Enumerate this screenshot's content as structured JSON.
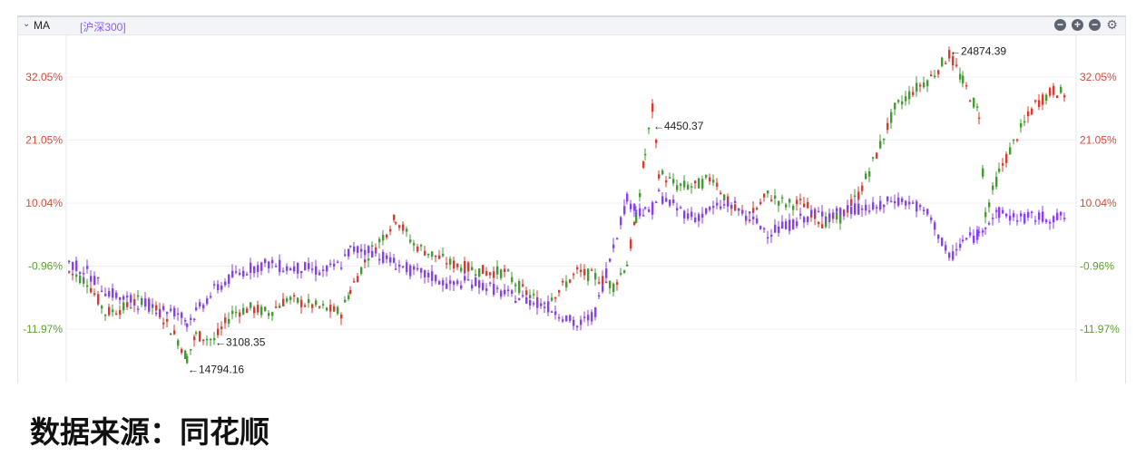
{
  "header": {
    "indicator": "MA",
    "index_label": "[沪深300]",
    "icons": [
      "collapse-circle-icon",
      "zoom-in-icon",
      "zoom-out-icon",
      "gear-icon"
    ]
  },
  "caption": "数据来源：同花顺",
  "chart_data": {
    "type": "candlestick-comparison",
    "ylim": [
      -19,
      38
    ],
    "y_ticks": [
      "32.05%",
      "21.05%",
      "10.04%",
      "-0.96%",
      "-11.97%"
    ],
    "y_tick_values": [
      32.05,
      21.05,
      10.04,
      -0.96,
      -11.97
    ],
    "grid": true,
    "colors": {
      "up": "#e0392b",
      "down": "#3f9e2c",
      "index": "#8a3cff",
      "tick_positive": "#d9473a",
      "tick_negative": "#5aa02c"
    },
    "series": [
      {
        "role": "main",
        "values_pct": [
          -2,
          -3.6,
          -9.1,
          -8.3,
          -6.7,
          -9.1,
          -13.9,
          -17,
          -13,
          -13.9,
          -9.1,
          -8.3,
          -9.1,
          -6.7,
          -7.5,
          -8.3,
          -9.1,
          -5.2,
          1.1,
          5.1,
          7.5,
          2.8,
          1.1,
          -0.5,
          -1.3,
          -2,
          -2,
          -5.2,
          -7.5,
          -5.2,
          -2,
          -2.8,
          -4.4,
          -0.5,
          7.5,
          18.6,
          26.5,
          15.4,
          13,
          13,
          14.6,
          9.1,
          7.5,
          11.5,
          9.9,
          9.9,
          6.7,
          7.5,
          11.5,
          18.6,
          26.5,
          29.7,
          32,
          36,
          31.3,
          25.7,
          8.3,
          15.4,
          21.8,
          27.3,
          29.7,
          28.9
        ]
      },
      {
        "name": "沪深300",
        "role": "index",
        "values_pct": [
          -0.4,
          -2,
          -5.2,
          -6.7,
          -7.5,
          -8.3,
          -9.1,
          -10.7,
          -9.1,
          -5.2,
          -2.8,
          -1.3,
          -0.5,
          -1.3,
          -1.3,
          -2,
          -0.5,
          1.9,
          1.9,
          0.3,
          -0.5,
          -2,
          -2.8,
          -4.4,
          -3.6,
          -4.4,
          -5.9,
          -6.7,
          -7.5,
          -9.1,
          -11.5,
          -9.1,
          2.8,
          10.7,
          9.1,
          8.3,
          9.1,
          11.5,
          9.1,
          7.5,
          9.1,
          9.9,
          7.5,
          5.1,
          5.9,
          7.5,
          8.3,
          8.3,
          9.1,
          9.1,
          10.7,
          9.9,
          7.5,
          0.3,
          3.4,
          4.6,
          6.7,
          8.3,
          7.5,
          7.5,
          7.5,
          7.5
        ]
      }
    ],
    "x_positions": [
      75,
      95,
      115,
      135,
      155,
      175,
      195,
      205,
      215,
      235,
      255,
      275,
      295,
      315,
      335,
      355,
      375,
      385,
      405,
      425,
      435,
      455,
      475,
      495,
      515,
      535,
      555,
      575,
      595,
      615,
      635,
      655,
      675,
      690,
      700,
      710,
      718,
      725,
      745,
      765,
      785,
      805,
      825,
      845,
      865,
      885,
      905,
      925,
      945,
      965,
      985,
      1005,
      1025,
      1045,
      1060,
      1078,
      1085,
      1100,
      1120,
      1140,
      1160,
      1175
    ],
    "annotations": [
      {
        "text": "←24874.39",
        "at_pct": 36.6,
        "index": 53
      },
      {
        "text": "←4450.37",
        "at_pct": 23.5,
        "index": 36
      },
      {
        "text": "←3108.35",
        "at_pct": -14.3,
        "index": 9
      },
      {
        "text": "←14794.16",
        "at_pct": -19,
        "index": 7
      }
    ]
  }
}
